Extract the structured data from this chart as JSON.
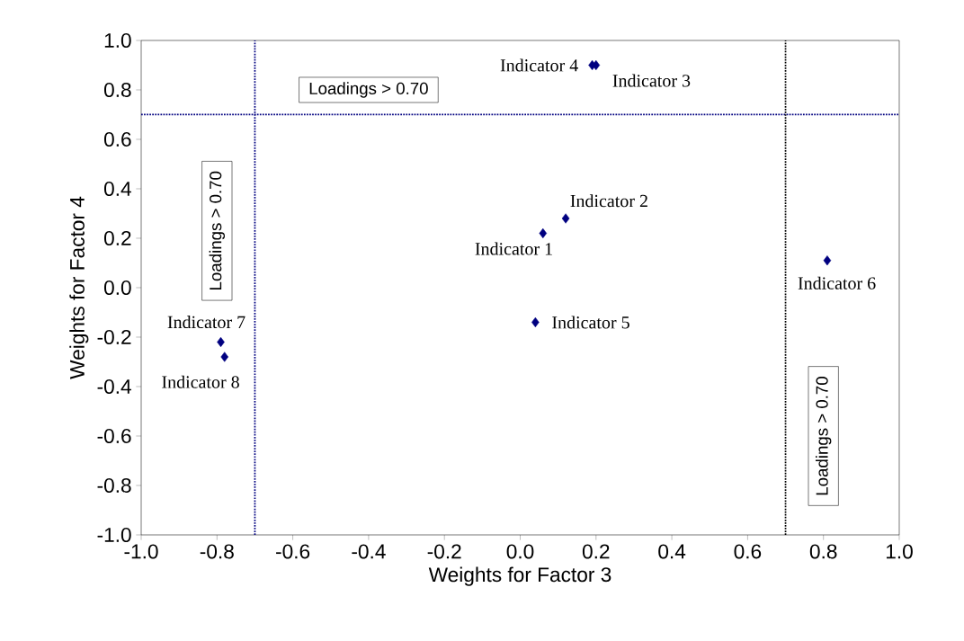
{
  "chart_data": {
    "type": "scatter",
    "xlabel": "Weights for Factor 3",
    "ylabel": "Weights for Factor 4",
    "x": [
      0.06,
      0.12,
      0.2,
      0.19,
      0.04,
      0.81,
      -0.79,
      -0.78
    ],
    "values": [
      0.22,
      0.28,
      0.9,
      0.9,
      -0.14,
      0.11,
      -0.22,
      -0.28
    ],
    "color": "#000080",
    "marker": "diamond",
    "xlim": [
      -1,
      1
    ],
    "ylim": [
      -1,
      1
    ],
    "xticks": [
      {
        "value": -1,
        "label": "-1.0"
      },
      -0.8,
      -0.6,
      -0.4,
      -0.2,
      {
        "value": 0,
        "label": "0.0"
      },
      0.2,
      0.4,
      0.6,
      0.8,
      {
        "value": 1,
        "label": "1.0"
      }
    ],
    "yticks": [
      {
        "value": -1,
        "label": "-1.0"
      },
      -0.8,
      -0.6,
      -0.4,
      -0.2,
      {
        "value": 0,
        "label": "0.0"
      },
      0.2,
      0.4,
      0.6,
      0.8,
      {
        "value": 1,
        "label": "1.0"
      }
    ],
    "ref_lines": [
      {
        "axis": "y",
        "value": 0.7,
        "label": "Loadings > 0.70",
        "color": "#000080",
        "line_style": "dotted"
      },
      {
        "axis": "x",
        "value": -0.7,
        "label": "Loadings > 0.70",
        "color": "#000080",
        "line_style": "dotted"
      },
      {
        "axis": "x",
        "value": 0.7,
        "label": "Loadings > 0.70",
        "color": "#000000",
        "line_style": "dotted"
      }
    ],
    "annotations": [
      {
        "text": "Indicator 1",
        "x": 0.06,
        "y": 0.22
      },
      {
        "text": "Indicator 2",
        "x": 0.12,
        "y": 0.28
      },
      {
        "text": "Indicator 3",
        "x": 0.2,
        "y": 0.9
      },
      {
        "text": "Indicator 4",
        "x": 0.19,
        "y": 0.9
      },
      {
        "text": "Indicator 5",
        "x": 0.04,
        "y": -0.14
      },
      {
        "text": "Indicator 6",
        "x": 0.81,
        "y": 0.11
      },
      {
        "text": "Indicator 7",
        "x": -0.79,
        "y": -0.22
      },
      {
        "text": "Indicator 8",
        "x": -0.78,
        "y": -0.28
      }
    ]
  }
}
